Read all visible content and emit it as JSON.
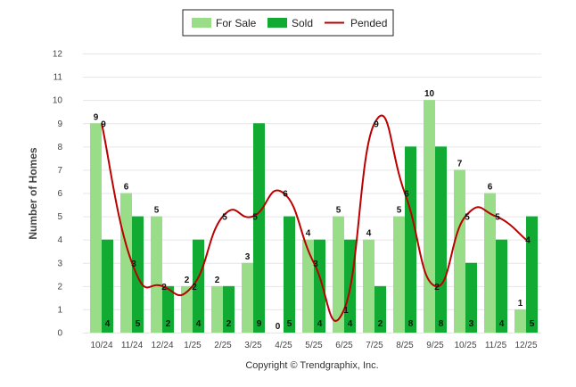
{
  "chart_data": {
    "type": "bar",
    "title": "",
    "ylabel": "Number of Homes",
    "xlabel": "",
    "ylim": [
      0,
      12
    ],
    "yticks": [
      "0",
      "1",
      "2",
      "3",
      "4",
      "5",
      "6",
      "7",
      "8",
      "9",
      "10",
      "11",
      "12"
    ],
    "categories": [
      "10/24",
      "11/24",
      "12/24",
      "1/25",
      "2/25",
      "3/25",
      "4/25",
      "5/25",
      "6/25",
      "7/25",
      "8/25",
      "9/25",
      "10/25",
      "11/25",
      "12/25"
    ],
    "series": [
      {
        "name": "For Sale",
        "kind": "bar",
        "color": "#99dd88",
        "values": [
          9,
          6,
          5,
          2,
          2,
          3,
          0,
          4,
          5,
          4,
          5,
          10,
          7,
          6,
          1
        ]
      },
      {
        "name": "Sold",
        "kind": "bar",
        "color": "#11aa33",
        "values": [
          4,
          5,
          2,
          4,
          2,
          9,
          5,
          4,
          4,
          2,
          8,
          8,
          3,
          4,
          5
        ]
      },
      {
        "name": "Pended",
        "kind": "line",
        "color": "#bb0000",
        "values": [
          9,
          3,
          2,
          2,
          5,
          5,
          6,
          3,
          1,
          9,
          6,
          2,
          5,
          5,
          4
        ]
      }
    ],
    "legend_position": "top-center"
  },
  "footer": "Copyright © Trendgraphix, Inc."
}
